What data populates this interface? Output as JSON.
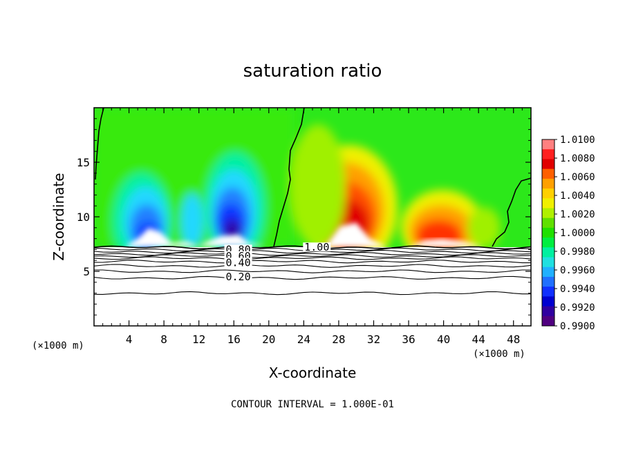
{
  "chart_data": {
    "type": "heatmap",
    "title": "saturation ratio",
    "xlabel": "X-coordinate",
    "ylabel": "Z-coordinate",
    "x_units": "(×1000 m)",
    "z_units": "(×1000 m)",
    "xlim": [
      0,
      50
    ],
    "ylim": [
      0,
      20
    ],
    "x_ticks": [
      4,
      8,
      12,
      16,
      20,
      24,
      28,
      32,
      36,
      40,
      44,
      48
    ],
    "y_ticks": [
      5,
      10,
      15
    ],
    "footer": "CONTOUR INTERVAL = 1.000E-01",
    "colorbar": {
      "ticks": [
        "1.0100",
        "1.0080",
        "1.0060",
        "1.0040",
        "1.0020",
        "1.0000",
        "0.9980",
        "0.9960",
        "0.9940",
        "0.9920",
        "0.9900"
      ],
      "colors": [
        "#ff8080",
        "#ff2020",
        "#e00000",
        "#ff6000",
        "#ffa000",
        "#ffd000",
        "#f0f000",
        "#b0f000",
        "#60e000",
        "#20e000",
        "#00ee40",
        "#00f0a0",
        "#20e0e0",
        "#20b0ff",
        "#2070ff",
        "#1030ff",
        "#0000d0",
        "#3000a0",
        "#500080"
      ]
    },
    "contour_labels": [
      {
        "text": "1.00",
        "x": 25.5,
        "z": 7.2
      },
      {
        "text": "0.80",
        "x": 16.5,
        "z": 7.0
      },
      {
        "text": "0.60",
        "x": 16.5,
        "z": 6.4
      },
      {
        "text": "0.40",
        "x": 16.5,
        "z": 5.8
      },
      {
        "text": "0.20",
        "x": 16.5,
        "z": 4.5
      }
    ],
    "contour_lines_z": [
      7.2,
      7.0,
      6.8,
      6.6,
      6.4,
      6.2,
      5.9,
      5.5,
      5.0,
      4.4,
      3.0
    ]
  }
}
